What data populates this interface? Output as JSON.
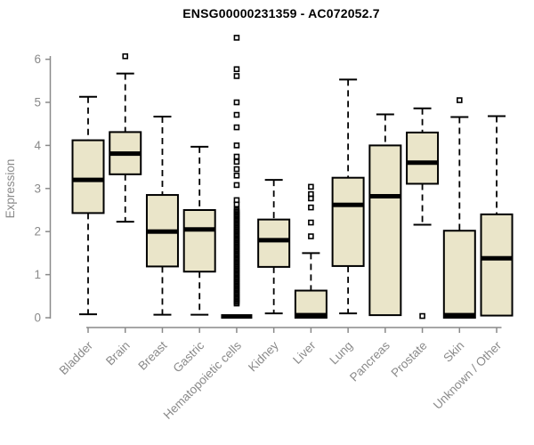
{
  "page": {
    "background": "#ffffff"
  },
  "chart_data": {
    "type": "boxplot",
    "title": "ENSG00000231359 - AC072052.7",
    "xlabel": "",
    "ylabel": "Expression",
    "ylim": [
      0,
      6.6
    ],
    "yticks": [
      0,
      1,
      2,
      3,
      4,
      5,
      6
    ],
    "grid": false,
    "legend": "none",
    "colors": {
      "box_fill": "#eae5c9",
      "box_stroke": "#000000",
      "median": "#000000",
      "whisker": "#000000",
      "outlier": "#000000",
      "axis": "#8a8a8a",
      "tick_label": "#8a8a8a",
      "title": "#000000"
    },
    "categories": [
      "Bladder",
      "Brain",
      "Breast",
      "Gastric",
      "Hematopoietic cells",
      "Kidney",
      "Liver",
      "Lung",
      "Pancreas",
      "Prostate",
      "Skin",
      "Unknown / Other"
    ],
    "series": [
      {
        "name": "Bladder",
        "min": 0.08,
        "q1": 2.43,
        "median": 3.2,
        "q3": 4.12,
        "max": 5.13,
        "outliers": []
      },
      {
        "name": "Brain",
        "min": 2.23,
        "q1": 3.33,
        "median": 3.81,
        "q3": 4.31,
        "max": 5.67,
        "outliers": [
          6.07
        ]
      },
      {
        "name": "Breast",
        "min": 0.07,
        "q1": 1.19,
        "median": 2.0,
        "q3": 2.85,
        "max": 4.67,
        "outliers": []
      },
      {
        "name": "Gastric",
        "min": 0.07,
        "q1": 1.07,
        "median": 2.05,
        "q3": 2.5,
        "max": 3.97,
        "outliers": []
      },
      {
        "name": "Hematopoietic cells",
        "min": 0,
        "q1": 0,
        "median": 0.03,
        "q3": 0,
        "max": 0,
        "outliers": [
          6.5,
          5.77,
          5.61,
          5.0,
          4.71,
          4.42,
          4.0,
          3.74,
          3.62,
          3.45,
          3.3,
          3.08,
          2.73,
          2.63
        ],
        "outlier_band": {
          "from": 0.33,
          "to": 2.5,
          "step": 0.035
        }
      },
      {
        "name": "Kidney",
        "min": 0.1,
        "q1": 1.18,
        "median": 1.8,
        "q3": 2.28,
        "max": 3.2,
        "outliers": []
      },
      {
        "name": "Liver",
        "min": 0,
        "q1": 0,
        "median": 0.06,
        "q3": 0.63,
        "max": 1.5,
        "outliers": [
          1.89,
          2.21,
          2.56,
          2.77,
          2.87,
          3.04
        ]
      },
      {
        "name": "Lung",
        "min": 0.1,
        "q1": 1.2,
        "median": 2.62,
        "q3": 3.25,
        "max": 5.53,
        "outliers": []
      },
      {
        "name": "Pancreas",
        "min": 0.06,
        "q1": 0.06,
        "median": 2.82,
        "q3": 4.0,
        "max": 4.72,
        "outliers": []
      },
      {
        "name": "Prostate",
        "min": 2.16,
        "q1": 3.11,
        "median": 3.6,
        "q3": 4.3,
        "max": 4.86,
        "outliers": [
          0.04
        ]
      },
      {
        "name": "Skin",
        "min": 0,
        "q1": 0,
        "median": 0.06,
        "q3": 2.02,
        "max": 4.66,
        "outliers": [
          5.05
        ]
      },
      {
        "name": "Unknown / Other",
        "min": 0.05,
        "q1": 0.05,
        "median": 1.38,
        "q3": 2.4,
        "max": 4.68,
        "outliers": []
      }
    ]
  }
}
